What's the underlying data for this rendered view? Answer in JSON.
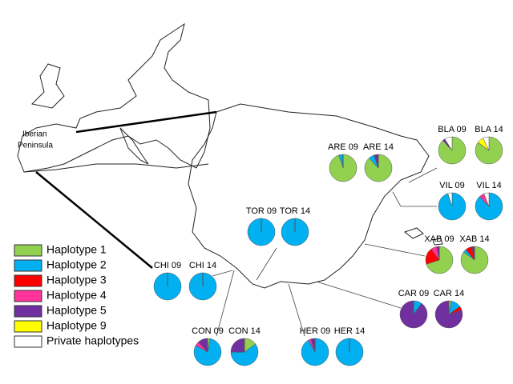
{
  "inset_label_line1": "Iberian",
  "inset_label_line2": "Peninsula",
  "legend": [
    {
      "label": "Haplotype 1",
      "color": "#92d050"
    },
    {
      "label": "Haplotype 2",
      "color": "#00b0f0"
    },
    {
      "label": "Haplotype 3",
      "color": "#ff0000"
    },
    {
      "label": "Haplotype 4",
      "color": "#ff3399"
    },
    {
      "label": "Haplotype 5",
      "color": "#7030a0"
    },
    {
      "label": "Haplotype 9",
      "color": "#ffff00"
    },
    {
      "label": "Private haplotypes",
      "color": "#ffffff"
    }
  ],
  "sites": [
    {
      "label": "ARE 09",
      "values": [
        95,
        5,
        0,
        0,
        0,
        0,
        0
      ]
    },
    {
      "label": "ARE 14",
      "values": [
        88,
        7,
        0,
        0,
        5,
        0,
        0
      ]
    },
    {
      "label": "BLA 09",
      "values": [
        88,
        0,
        0,
        0,
        3,
        0,
        9
      ]
    },
    {
      "label": "BLA 14",
      "values": [
        85,
        0,
        0,
        0,
        0,
        8,
        7
      ]
    },
    {
      "label": "VIL 09",
      "values": [
        0,
        95,
        0,
        0,
        0,
        0,
        5
      ]
    },
    {
      "label": "VIL 14",
      "values": [
        0,
        88,
        0,
        6,
        0,
        0,
        6
      ]
    },
    {
      "label": "XAB 09",
      "values": [
        70,
        0,
        20,
        7,
        3,
        0,
        0
      ]
    },
    {
      "label": "XAB 14",
      "values": [
        85,
        4,
        8,
        0,
        3,
        0,
        0
      ]
    },
    {
      "label": "TOR 09",
      "values": [
        0,
        100,
        0,
        0,
        0,
        0,
        0
      ]
    },
    {
      "label": "TOR 14",
      "values": [
        0,
        100,
        0,
        0,
        0,
        0,
        0
      ]
    },
    {
      "label": "CHI 09",
      "values": [
        0,
        100,
        0,
        0,
        0,
        0,
        0
      ]
    },
    {
      "label": "CHI 14",
      "values": [
        0,
        100,
        0,
        0,
        0,
        0,
        0
      ]
    },
    {
      "label": "CAR 09",
      "values": [
        0,
        10,
        0,
        0,
        90,
        0,
        0
      ]
    },
    {
      "label": "CAR 14",
      "values": [
        3,
        12,
        5,
        0,
        80,
        0,
        0
      ]
    },
    {
      "label": "CON 09",
      "values": [
        3,
        80,
        0,
        5,
        12,
        0,
        0
      ]
    },
    {
      "label": "CON 14",
      "values": [
        15,
        60,
        0,
        0,
        25,
        0,
        0
      ]
    },
    {
      "label": "HER 09",
      "values": [
        0,
        92,
        0,
        3,
        5,
        0,
        0
      ]
    },
    {
      "label": "HER 14",
      "values": [
        0,
        100,
        0,
        0,
        0,
        0,
        0
      ]
    }
  ]
}
